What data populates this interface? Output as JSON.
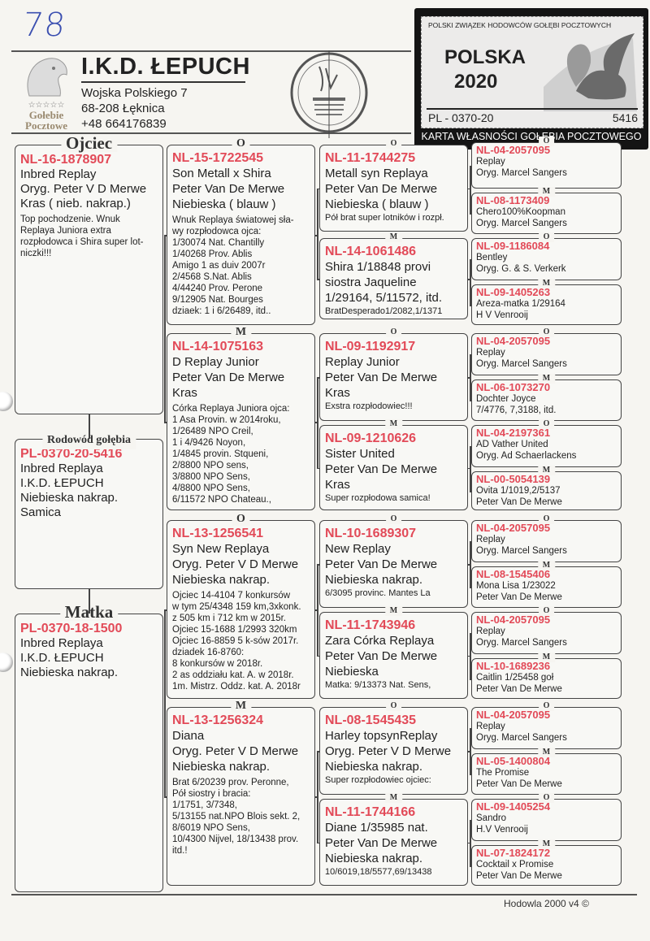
{
  "handwritten_number": "78",
  "header": {
    "breeder_name": "I.K.D. ŁEPUCH",
    "address_line1": "Wojska Polskiego 7",
    "address_line2": "68-208 Łęknica",
    "phone": "+48  664176839",
    "logo_stars": "☆☆☆☆☆",
    "logo_text1": "Gołebie",
    "logo_text2": "Pocztowe",
    "stamp_text": "Hodowla Gołębi Pocztowych Łepuch I.K.D. ul. Wojska Polskiego 7 68-208 Łęknica"
  },
  "ownership_card": {
    "org": "POLSKI ZWIĄZEK HODOWCÓW GOŁĘBI POCZTOWYCH",
    "country": "POLSKA",
    "year": "2020",
    "ring_left": "PL - 0370-20",
    "ring_right": "5416",
    "caption": "KARTA WŁASNOŚCI GOŁĘBIA POCZTOWEGO"
  },
  "colors": {
    "ring": "#e24a58",
    "text": "#222222",
    "border": "#444444"
  },
  "generation1": [
    {
      "label": "Ojciec",
      "ring": "NL-16-1878907",
      "lines": [
        "Inbred Replay",
        "Oryg. Peter V D Merwe",
        "Kras  ( nieb. nakrap.)"
      ],
      "notes": [
        "Top pochodzenie. Wnuk",
        "Replaya Juniora extra",
        "rozpłodowca i Shira super lot-",
        "niczki!!!"
      ]
    },
    {
      "label": "Rodowód gołębia",
      "ring": "PL-0370-20-5416",
      "lines": [
        "Inbred Replaya",
        "I.K.D. ŁEPUCH",
        "Niebieska nakrap.",
        "Samica"
      ],
      "notes": []
    },
    {
      "label": "Matka",
      "ring": "PL-0370-18-1500",
      "lines": [
        "Inbred Replaya",
        "I.K.D. ŁEPUCH",
        "Niebieska nakrap."
      ],
      "notes": []
    }
  ],
  "generation2": [
    {
      "label": "O",
      "ring": "NL-15-1722545",
      "lines": [
        "Son Metall x Shira",
        "Peter Van De Merwe",
        "Niebieska ( blauw )"
      ],
      "notes": [
        "Wnuk Replaya światowej sła-",
        "wy rozpłodowca ojca:",
        "1/30074 Nat. Chantilly",
        "1/40268 Prov. Ablis",
        "Amigo 1 as duiv 2007r",
        "2/4568 S.Nat. Ablis",
        "4/44240 Prov. Perone",
        "9/12905 Nat. Bourges",
        "dziaek: 1 i 6/26489, itd.."
      ]
    },
    {
      "label": "M",
      "ring": "NL-14-1075163",
      "lines": [
        "D Replay Junior",
        "Peter Van De Merwe",
        "Kras"
      ],
      "notes": [
        "Córka Replaya Juniora ojca:",
        "1 Asa Provin. w 2014roku,",
        "1/26489 NPO Creil,",
        "1 i 4/9426 Noyon,",
        "1/4845 provin. Stqueni,",
        "2/8800 NPO sens,",
        "3/8800 NPO Sens,",
        "4/8800 NPO Sens,",
        "6/11572 NPO Chateau.,"
      ]
    },
    {
      "label": "O",
      "ring": "NL-13-1256541",
      "lines": [
        "Syn New Replaya",
        "Oryg. Peter V D Merwe",
        "Niebieska nakrap."
      ],
      "notes": [
        "Ojciec 14-4104  7 konkursów",
        "w tym 25/4348 159 km,3xkonk.",
        "z 505 km i 712 km w 2015r.",
        "Ojciec 15-1688 1/2993 320km",
        "Ojciec 16-8859 5 k-sów 2017r.",
        "          dziadek 16-8760:",
        "8 konkursów w 2018r.",
        "2 as oddziału kat. A. w 2018r.",
        "1m. Mistrz. Oddz. kat. A. 2018r"
      ]
    },
    {
      "label": "M",
      "ring": "NL-13-1256324",
      "lines": [
        "Diana",
        "Oryg. Peter V D Merwe",
        "Niebieska nakrap."
      ],
      "notes": [
        "Brat 6/20239 prov. Peronne,",
        "Pół siostry i bracia:",
        "1/1751, 3/7348,",
        "5/13155 nat.NPO Blois sekt. 2,",
        "8/6019 NPO Sens,",
        "10/4300 Nijvel, 18/13438 prov.",
        "itd.!"
      ]
    }
  ],
  "generation3": [
    {
      "label": "O",
      "ring": "NL-11-1744275",
      "lines": [
        "Metall   syn Replaya",
        "Peter Van De Merwe",
        "Niebieska ( blauw )"
      ],
      "notes": [
        "Pół brat super lotników i rozpł."
      ]
    },
    {
      "label": "M",
      "ring": "NL-14-1061486",
      "lines": [
        "Shira  1/18848 provi",
        "siostra Jaqueline",
        "1/29164, 5/11572, itd."
      ],
      "notes": [
        "BratDesperado1/2082,1/1371"
      ]
    },
    {
      "label": "O",
      "ring": "NL-09-1192917",
      "lines": [
        "Replay Junior",
        "Peter Van De Merwe",
        "Kras"
      ],
      "notes": [
        "Exstra rozpłodowiec!!!"
      ]
    },
    {
      "label": "M",
      "ring": "NL-09-1210626",
      "lines": [
        "Sister United",
        "Peter Van De Merwe",
        "Kras"
      ],
      "notes": [
        "Super rozpłodowa samica!"
      ]
    },
    {
      "label": "O",
      "ring": "NL-10-1689307",
      "lines": [
        "New Replay",
        "Peter Van De Merwe",
        "Niebieska nakrap."
      ],
      "notes": [
        "6/3095 provinc. Mantes La"
      ]
    },
    {
      "label": "M",
      "ring": "NL-11-1743946",
      "lines": [
        "Zara Córka Replaya",
        "Peter Van De Merwe",
        "Niebieska"
      ],
      "notes": [
        "Matka:   9/13373 Nat. Sens,"
      ]
    },
    {
      "label": "O",
      "ring": "NL-08-1545435",
      "lines": [
        "Harley topsynReplay",
        "Oryg. Peter V D Merwe",
        "Niebieska nakrap."
      ],
      "notes": [
        "Super rozpłodowiec ojciec:"
      ]
    },
    {
      "label": "M",
      "ring": "NL-11-1744166",
      "lines": [
        "Diane  1/35985 nat.",
        "Peter Van De Merwe",
        "Niebieska nakrap."
      ],
      "notes": [
        "10/6019,18/5577,69/13438"
      ]
    }
  ],
  "generation4": [
    {
      "label": "O",
      "ring": "NL-04-2057095",
      "lines": [
        "Replay",
        "Oryg. Marcel Sangers"
      ]
    },
    {
      "label": "M",
      "ring": "NL-08-1173409",
      "lines": [
        "Chero100%Koopman",
        "Oryg. Marcel Sangers"
      ]
    },
    {
      "label": "O",
      "ring": "NL-09-1186084",
      "lines": [
        "Bentley",
        "Oryg. G. & S. Verkerk"
      ]
    },
    {
      "label": "M",
      "ring": "NL-09-1405263",
      "lines": [
        "Areza-matka 1/29164",
        "H V Venrooij"
      ]
    },
    {
      "label": "O",
      "ring": "NL-04-2057095",
      "lines": [
        "Replay",
        "Oryg. Marcel Sangers"
      ]
    },
    {
      "label": "M",
      "ring": "NL-06-1073270",
      "lines": [
        "Dochter Joyce",
        "7/4776, 7,3188, itd."
      ]
    },
    {
      "label": "O",
      "ring": "NL-04-2197361",
      "lines": [
        "AD Vather United",
        "Oryg. Ad Schaerlackens"
      ]
    },
    {
      "label": "M",
      "ring": "NL-00-5054139",
      "lines": [
        "Ovita 1/1019,2/5137",
        "Peter Van De Merwe"
      ]
    },
    {
      "label": "O",
      "ring": "NL-04-2057095",
      "lines": [
        "Replay",
        "Oryg. Marcel Sangers"
      ]
    },
    {
      "label": "M",
      "ring": "NL-08-1545406",
      "lines": [
        "Mona Lisa  1/23022",
        "Peter Van De Merwe"
      ]
    },
    {
      "label": "O",
      "ring": "NL-04-2057095",
      "lines": [
        "Replay",
        "Oryg. Marcel Sangers"
      ]
    },
    {
      "label": "M",
      "ring": "NL-10-1689236",
      "lines": [
        "Caitlin  1/25458 goł",
        "Peter Van De Merwe"
      ]
    },
    {
      "label": "O",
      "ring": "NL-04-2057095",
      "lines": [
        "Replay",
        "Oryg. Marcel Sangers"
      ]
    },
    {
      "label": "M",
      "ring": "NL-05-1400804",
      "lines": [
        "The Promise",
        "Peter Van De Merwe"
      ]
    },
    {
      "label": "O",
      "ring": "NL-09-1405254",
      "lines": [
        "Sandro",
        "H.V Venrooij"
      ]
    },
    {
      "label": "M",
      "ring": "NL-07-1824172",
      "lines": [
        "Cocktail x Promise",
        "Peter Van De Merwe"
      ]
    }
  ],
  "footer": {
    "software": "Hodowla 2000 v4 ©"
  }
}
